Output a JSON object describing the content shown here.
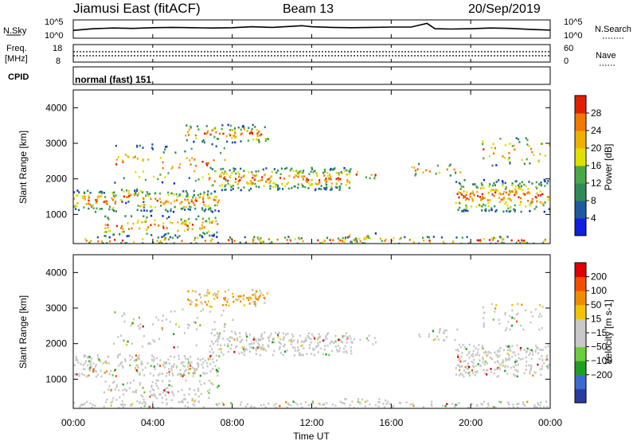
{
  "header": {
    "station": "Jiamusi East (fitACF)",
    "beam": "Beam 13",
    "date": "20/Sep/2019"
  },
  "noise_panel": {
    "left_label": "N.Sky",
    "right_label": "N.Search",
    "left_ticks": [
      "10^5",
      "10^0"
    ],
    "right_ticks": [
      "10^5",
      "10^0"
    ]
  },
  "freq_panel": {
    "label": "Freq.",
    "unit": "[MHz]",
    "right_label": "Nave",
    "left_ticks": [
      "18",
      "8"
    ],
    "right_ticks": [
      "60",
      "0"
    ],
    "cpid_label": "CPID",
    "cpid_value": "normal (fast) 151"
  },
  "x_axis": {
    "ticks": [
      "00:00",
      "04:00",
      "08:00",
      "12:00",
      "16:00",
      "20:00",
      "00:00"
    ],
    "label": "Time UT"
  },
  "colors": {
    "power": [
      "#1020e0",
      "#1e5aa0",
      "#2e8b57",
      "#4aa84a",
      "#e0e000",
      "#f0b000",
      "#f07800",
      "#e02000"
    ],
    "velocity": [
      "#2b3b9f",
      "#3c6bd0",
      "#1f9f1f",
      "#6ccc3c",
      "#c8c8c8",
      "#c8c8c8",
      "#f0c400",
      "#f08c00",
      "#f05000",
      "#e00000"
    ]
  },
  "chart_data": [
    {
      "type": "line",
      "title": "N.Sky",
      "x_range": [
        "00:00",
        "24:00"
      ],
      "ylim_log10": [
        0,
        5
      ],
      "x": [
        0,
        1,
        2,
        3,
        4,
        5,
        6,
        7,
        8,
        9,
        10,
        11,
        11.5,
        12,
        13,
        14,
        15,
        16,
        17,
        17.8,
        18.2,
        19,
        20,
        21,
        22,
        23,
        24
      ],
      "values_log10": [
        2.1,
        2.6,
        2.8,
        2.7,
        2.9,
        3.0,
        2.9,
        2.8,
        2.9,
        3.2,
        3.0,
        3.3,
        3.5,
        3.2,
        3.0,
        2.9,
        3.0,
        3.1,
        3.1,
        4.2,
        2.6,
        2.5,
        2.6,
        2.8,
        2.7,
        2.4,
        2.2
      ]
    },
    {
      "type": "heatmap",
      "title": "Power [dB]",
      "ylabel": "Slant Range [km]",
      "xlabel": "Time UT",
      "x_range_hours": [
        0,
        24
      ],
      "y_range_km": [
        180,
        4500
      ],
      "y_ticks": [
        1000,
        2000,
        3000,
        4000
      ],
      "colorbar_ticks": [
        4,
        8,
        12,
        16,
        20,
        24,
        28
      ],
      "colorbar_label": "Power [dB]"
    },
    {
      "type": "heatmap",
      "title": "Velocity [m s-1]",
      "ylabel": "Slant Range [km]",
      "xlabel": "Time UT",
      "x_range_hours": [
        0,
        24
      ],
      "y_range_km": [
        180,
        4500
      ],
      "y_ticks": [
        1000,
        2000,
        3000,
        4000
      ],
      "colorbar_ticks": [
        200,
        100,
        50,
        15,
        -15,
        -50,
        -100,
        -200
      ],
      "colorbar_label": "Velocity [m s-1]"
    }
  ]
}
